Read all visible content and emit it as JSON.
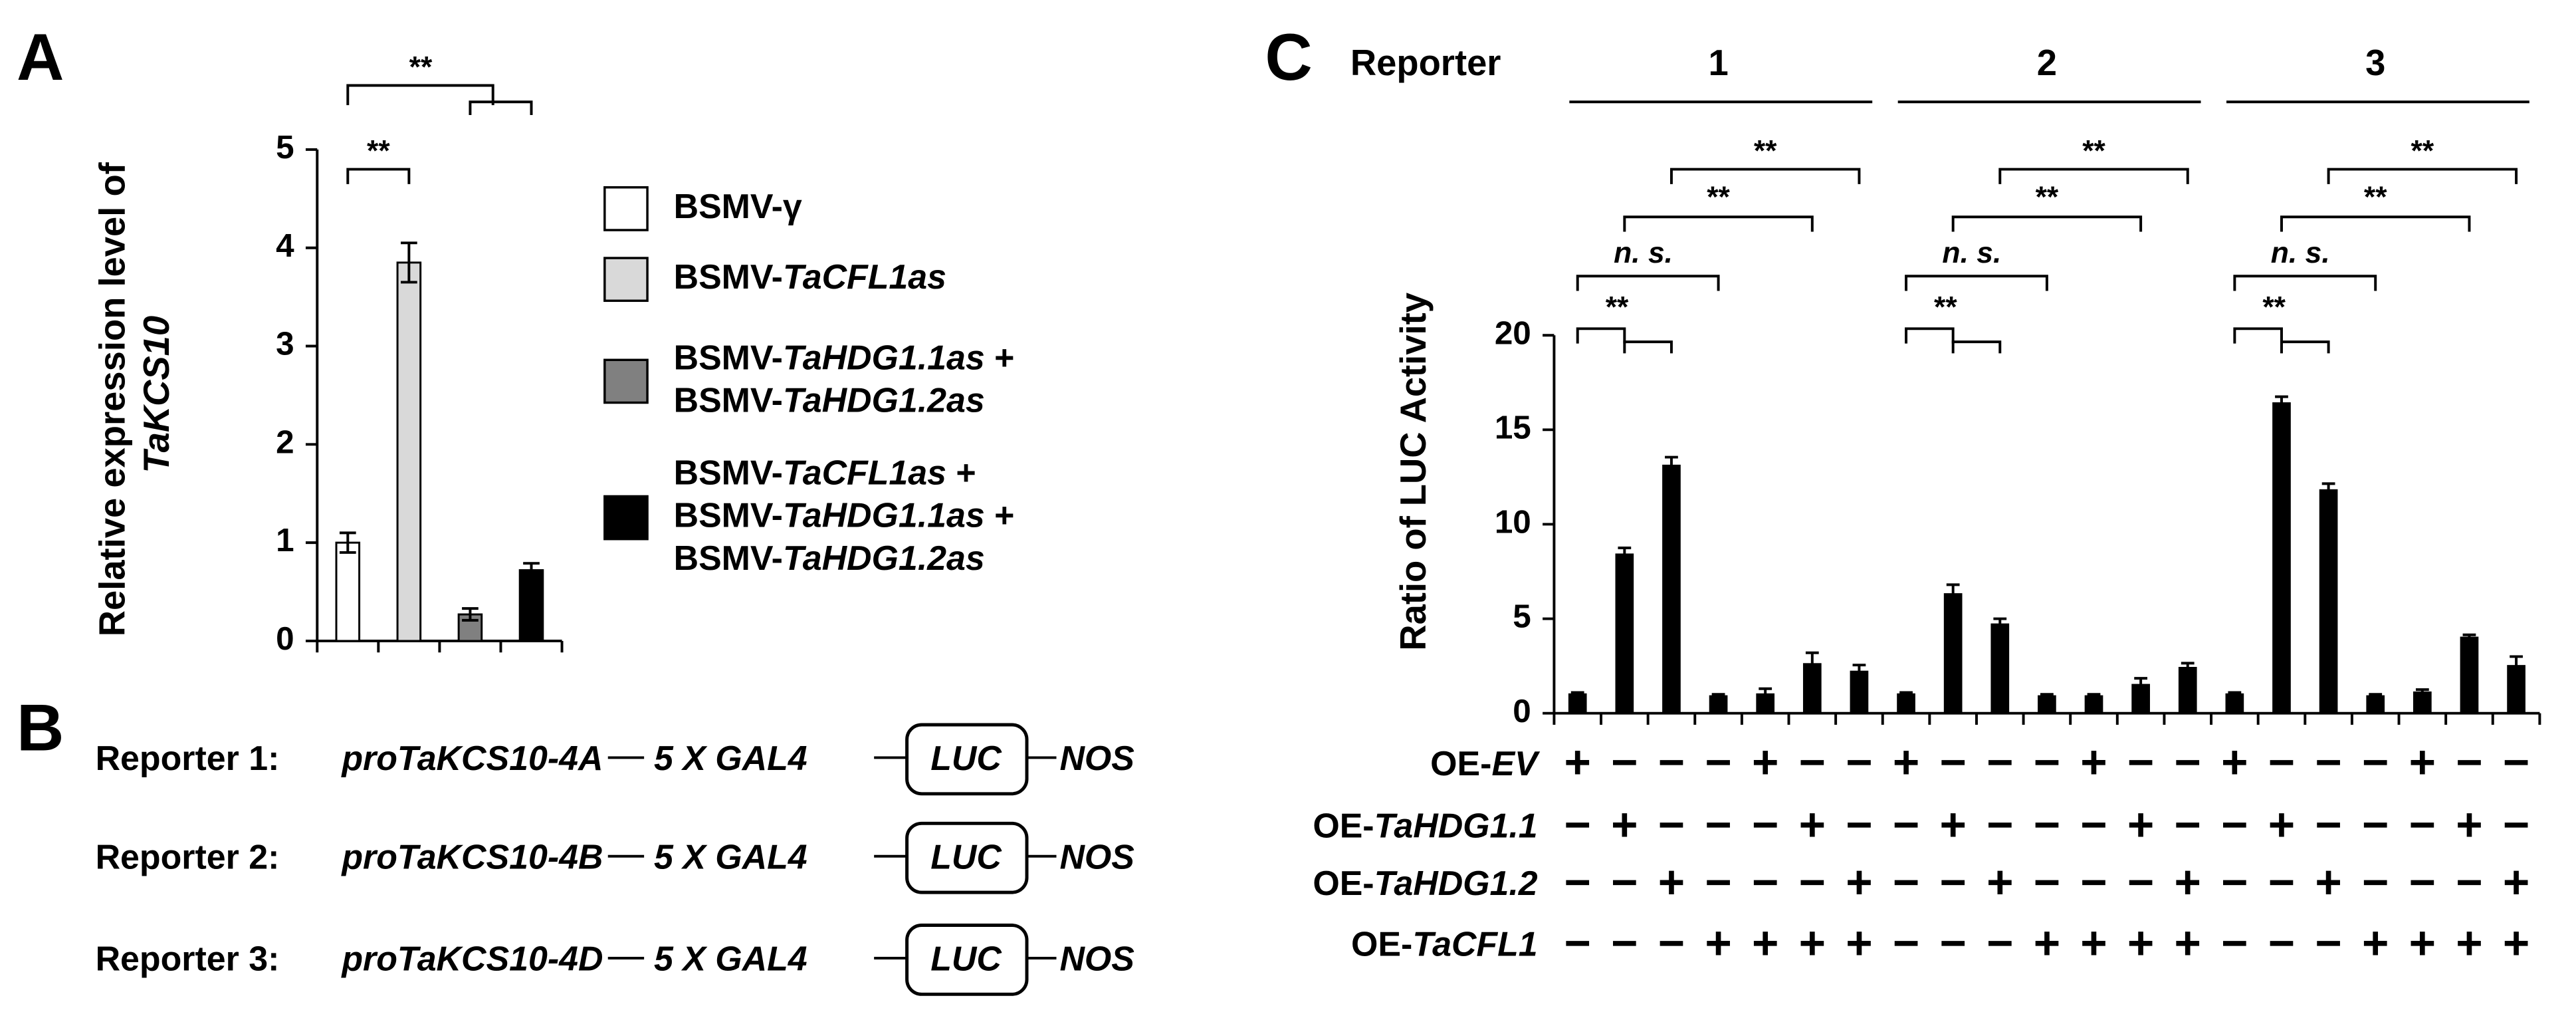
{
  "panel_labels": [
    "A",
    "B",
    "C"
  ],
  "chart_data": [
    {
      "type": "bar",
      "ylabel": "Relative expression level of TaKCS10",
      "categories": [
        null,
        null,
        null,
        null
      ],
      "ylim": [
        0,
        5
      ],
      "yticks": [
        0,
        1,
        2,
        3,
        4,
        5
      ],
      "series": [
        {
          "name": "BSMV-γ",
          "color": "#ffffff",
          "values": [
            1.0,
            null,
            null,
            null
          ],
          "errors": [
            0.1,
            null,
            null,
            null
          ]
        },
        {
          "name": "BSMV-TaCFL1as",
          "color": "#d9d9d9",
          "values": [
            null,
            3.85,
            null,
            null
          ],
          "errors": [
            null,
            0.2,
            null,
            null
          ]
        },
        {
          "name": "BSMV-TaHDG1.1as + BSMV-TaHDG1.2as",
          "color": "#808080",
          "values": [
            null,
            null,
            0.27,
            null
          ],
          "errors": [
            null,
            null,
            0.06,
            null
          ]
        },
        {
          "name": "BSMV-TaCFL1as + BSMV-TaHDG1.1as + BSMV-TaHDG1.2as",
          "color": "#000000",
          "values": [
            null,
            null,
            null,
            0.72
          ],
          "errors": [
            null,
            null,
            null,
            0.07
          ]
        }
      ],
      "annotations": [
        "**",
        "**"
      ]
    },
    {
      "type": "bar",
      "ylabel": "Ratio of LUC Activity",
      "categories": [
        null,
        null,
        null,
        null,
        null,
        null,
        null,
        null,
        null,
        null,
        null,
        null,
        null,
        null,
        null,
        null,
        null,
        null,
        null,
        null,
        null
      ],
      "values": [
        1.0,
        8.4,
        13.1,
        0.9,
        1.0,
        2.6,
        2.2,
        1.0,
        6.3,
        4.7,
        0.9,
        0.9,
        1.5,
        2.4,
        1.0,
        16.4,
        11.8,
        0.9,
        1.1,
        4.0,
        2.5
      ],
      "errors": [
        0.1,
        0.35,
        0.45,
        0.1,
        0.3,
        0.6,
        0.35,
        0.1,
        0.5,
        0.3,
        0.1,
        0.1,
        0.35,
        0.25,
        0.1,
        0.35,
        0.35,
        0.1,
        0.15,
        0.15,
        0.5
      ],
      "color": "#000000",
      "ylim": [
        0,
        20
      ],
      "yticks": [
        0,
        5,
        10,
        15,
        20
      ],
      "group_title": "Reporter",
      "groups": [
        "1",
        "2",
        "3"
      ],
      "annotations": [
        "**",
        "n. s.",
        "**",
        "**",
        "**",
        "n. s.",
        "**",
        "**",
        "**",
        "n. s.",
        "**",
        "**"
      ],
      "table": [
        {
          "label": "OE-EV",
          "signs": [
            "+",
            "−",
            "−",
            "−",
            "+",
            "−",
            "−",
            "+",
            "−",
            "−",
            "−",
            "+",
            "−",
            "−",
            "+",
            "−",
            "−",
            "−",
            "+",
            "−",
            "−"
          ]
        },
        {
          "label": "OE-TaHDG1.1",
          "signs": [
            "−",
            "+",
            "−",
            "−",
            "−",
            "+",
            "−",
            "−",
            "+",
            "−",
            "−",
            "−",
            "+",
            "−",
            "−",
            "+",
            "−",
            "−",
            "−",
            "+",
            "−"
          ]
        },
        {
          "label": "OE-TaHDG1.2",
          "signs": [
            "−",
            "−",
            "+",
            "−",
            "−",
            "−",
            "+",
            "−",
            "−",
            "+",
            "−",
            "−",
            "−",
            "+",
            "−",
            "−",
            "+",
            "−",
            "−",
            "−",
            "+"
          ]
        },
        {
          "label": "OE-TaCFL1",
          "signs": [
            "−",
            "−",
            "−",
            "+",
            "+",
            "+",
            "+",
            "−",
            "−",
            "−",
            "+",
            "+",
            "+",
            "+",
            "−",
            "−",
            "−",
            "+",
            "+",
            "+",
            "+"
          ]
        }
      ]
    }
  ],
  "panel_b": {
    "rows": [
      {
        "label": "Reporter 1:",
        "promoter": "proTaKCS10-4A",
        "element": "5 X GAL4",
        "gene": "LUC",
        "terminator": "NOS"
      },
      {
        "label": "Reporter 2:",
        "promoter": "proTaKCS10-4B",
        "element": "5 X GAL4",
        "gene": "LUC",
        "terminator": "NOS"
      },
      {
        "label": "Reporter 3:",
        "promoter": "proTaKCS10-4D",
        "element": "5 X GAL4",
        "gene": "LUC",
        "terminator": "NOS"
      }
    ]
  }
}
